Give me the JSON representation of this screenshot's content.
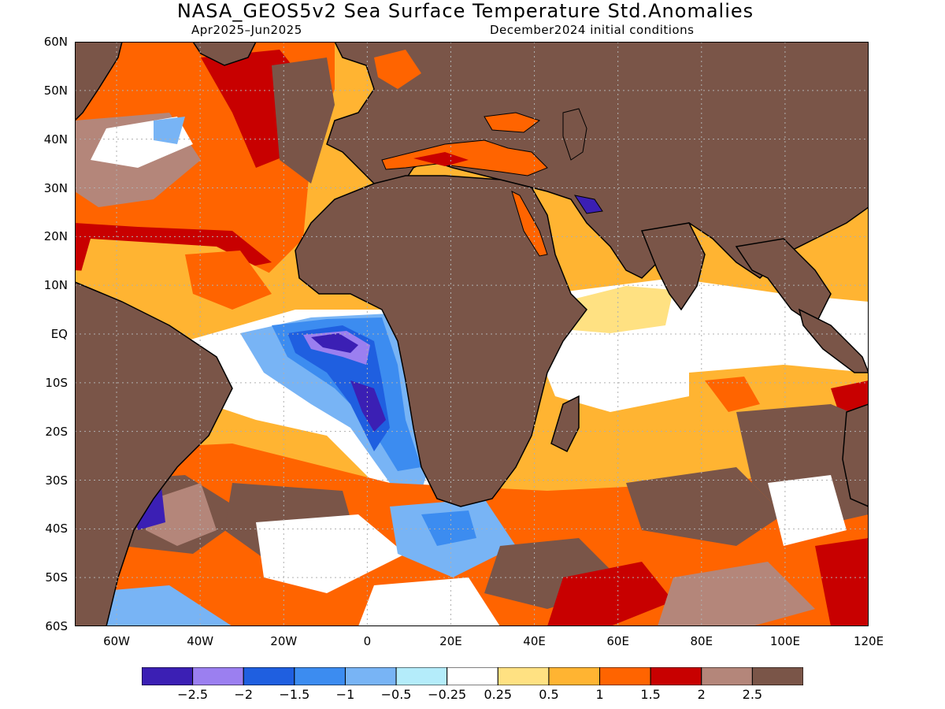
{
  "title": "NASA_GEOS5v2 Sea Surface Temperature Std.Anomalies",
  "subtitle_left": "Apr2025–Jun2025",
  "subtitle_right": "December2024 initial conditions",
  "colors": {
    "land": "#7a5548",
    "coast": "#000000",
    "grid": "#b0b0b0"
  },
  "map": {
    "lon_range": [
      -70,
      120
    ],
    "lat_range": [
      -60,
      60
    ],
    "lat_labels": [
      "60N",
      "50N",
      "40N",
      "30N",
      "20N",
      "10N",
      "EQ",
      "10S",
      "20S",
      "30S",
      "40S",
      "50S",
      "60S"
    ],
    "lon_labels": [
      "60W",
      "40W",
      "20W",
      "0",
      "20E",
      "40E",
      "60E",
      "80E",
      "100E",
      "120E"
    ],
    "lon_ticks": [
      -60,
      -40,
      -20,
      0,
      20,
      40,
      60,
      80,
      100,
      120
    ],
    "lat_ticks": [
      60,
      50,
      40,
      30,
      20,
      10,
      0,
      -10,
      -20,
      -30,
      -40,
      -50,
      -60
    ]
  },
  "colorbar": {
    "colors": [
      "#3b1fb4",
      "#9b7ff0",
      "#1f5fe0",
      "#3c8cf0",
      "#78b4f5",
      "#b4ecfa",
      "#ffffff",
      "#ffe182",
      "#ffb432",
      "#ff6400",
      "#c80000",
      "#b4867a",
      "#7a5548"
    ],
    "labels": [
      "−2.5",
      "−2",
      "−1.5",
      "−1",
      "−0.5",
      "−0.25",
      "0.25",
      "0.5",
      "1",
      "1.5",
      "2",
      "2.5"
    ]
  }
}
